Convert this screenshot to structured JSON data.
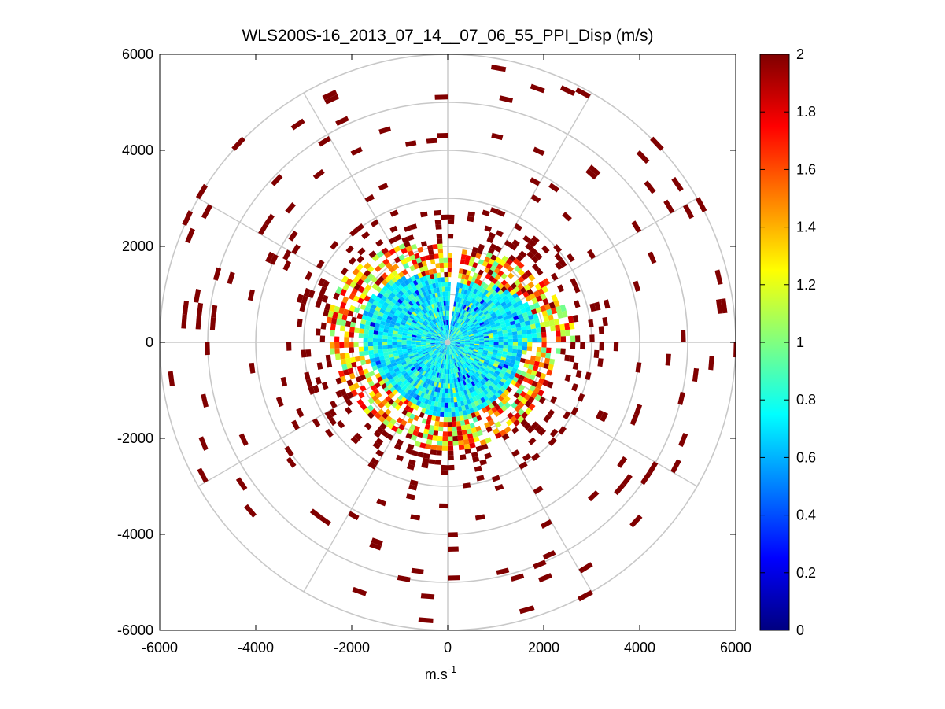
{
  "chart_data": {
    "type": "heatmap",
    "subtype": "polar-ppi",
    "title": "WLS200S-16_2013_07_14__07_06_55_PPI_Disp (m/s)",
    "xlabel": "m.s",
    "xlabel_superscript": "-1",
    "ylabel": "",
    "xlim": [
      -6000,
      6000
    ],
    "ylim": [
      -6000,
      6000
    ],
    "x_ticks": [
      -6000,
      -4000,
      -2000,
      0,
      2000,
      4000,
      6000
    ],
    "y_ticks": [
      6000,
      4000,
      2000,
      0,
      -2000,
      -4000,
      -6000
    ],
    "x_tick_labels": [
      "-6000",
      "-4000",
      "-2000",
      "0",
      "2000",
      "4000",
      "6000"
    ],
    "y_tick_labels": [
      "6000",
      "4000",
      "2000",
      "0",
      "-2000",
      "-4000",
      "-6000"
    ],
    "polar_grid": {
      "ring_radii": [
        1000,
        2000,
        3000,
        4000,
        5000,
        6000
      ],
      "spoke_angles_deg": [
        0,
        30,
        60,
        90,
        120,
        150,
        180,
        210,
        240,
        270,
        300,
        330
      ]
    },
    "colorbar": {
      "range": [
        0,
        2
      ],
      "colormap": "jet",
      "ticks": [
        2,
        1.8,
        1.6,
        1.4,
        1.2,
        1,
        0.8,
        0.6,
        0.4,
        0.2,
        0
      ],
      "tick_labels": [
        "2",
        "1.8",
        "1.6",
        "1.4",
        "1.2",
        "1",
        "0.8",
        "0.6",
        "0.4",
        "0.2",
        "0"
      ]
    },
    "data_description_regions": [
      {
        "range_m": [
          0,
          1900
        ],
        "value_approx": 0.7,
        "note": "core of mostly cyan / light-blue values"
      },
      {
        "range_m": [
          1900,
          2500
        ],
        "value_approx": 1.6,
        "note": "mixed yellow/orange/red transition ring"
      },
      {
        "range_m": [
          2500,
          6000
        ],
        "value_approx": 2.0,
        "note": "sparse saturated dark-red gates"
      }
    ],
    "gap_sector_deg": [
      82,
      87
    ]
  }
}
